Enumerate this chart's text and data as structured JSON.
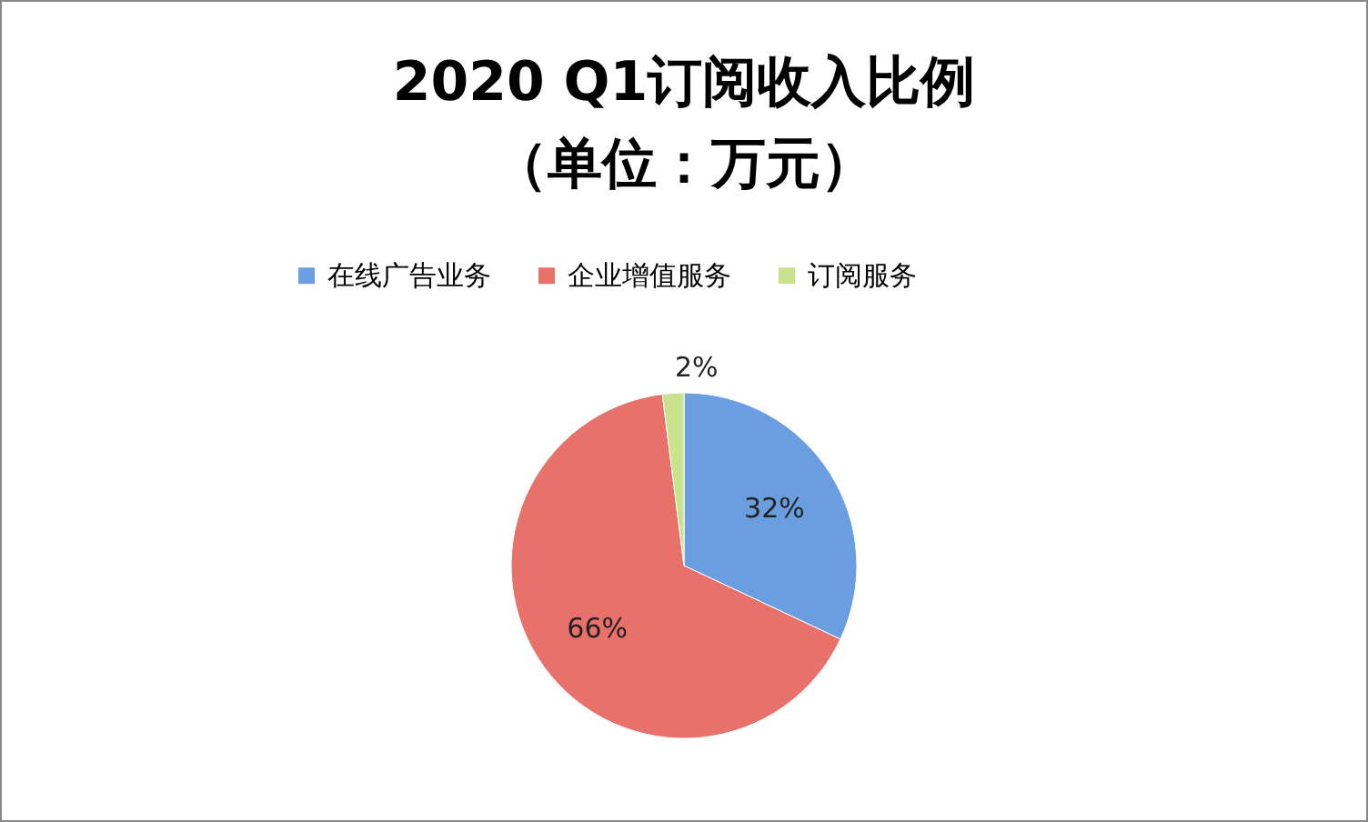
{
  "chart_data": {
    "type": "pie",
    "title": "2020 Q1订阅收入比例",
    "subtitle": "（单位：万元）",
    "categories": [
      "在线广告业务",
      "企业增值服务",
      "订阅服务"
    ],
    "values": [
      32,
      66,
      2
    ],
    "colors": [
      "#6a9ee0",
      "#e8716b",
      "#c9e28c"
    ],
    "value_labels": [
      "32%",
      "66%",
      "2%"
    ],
    "legend": "top"
  }
}
